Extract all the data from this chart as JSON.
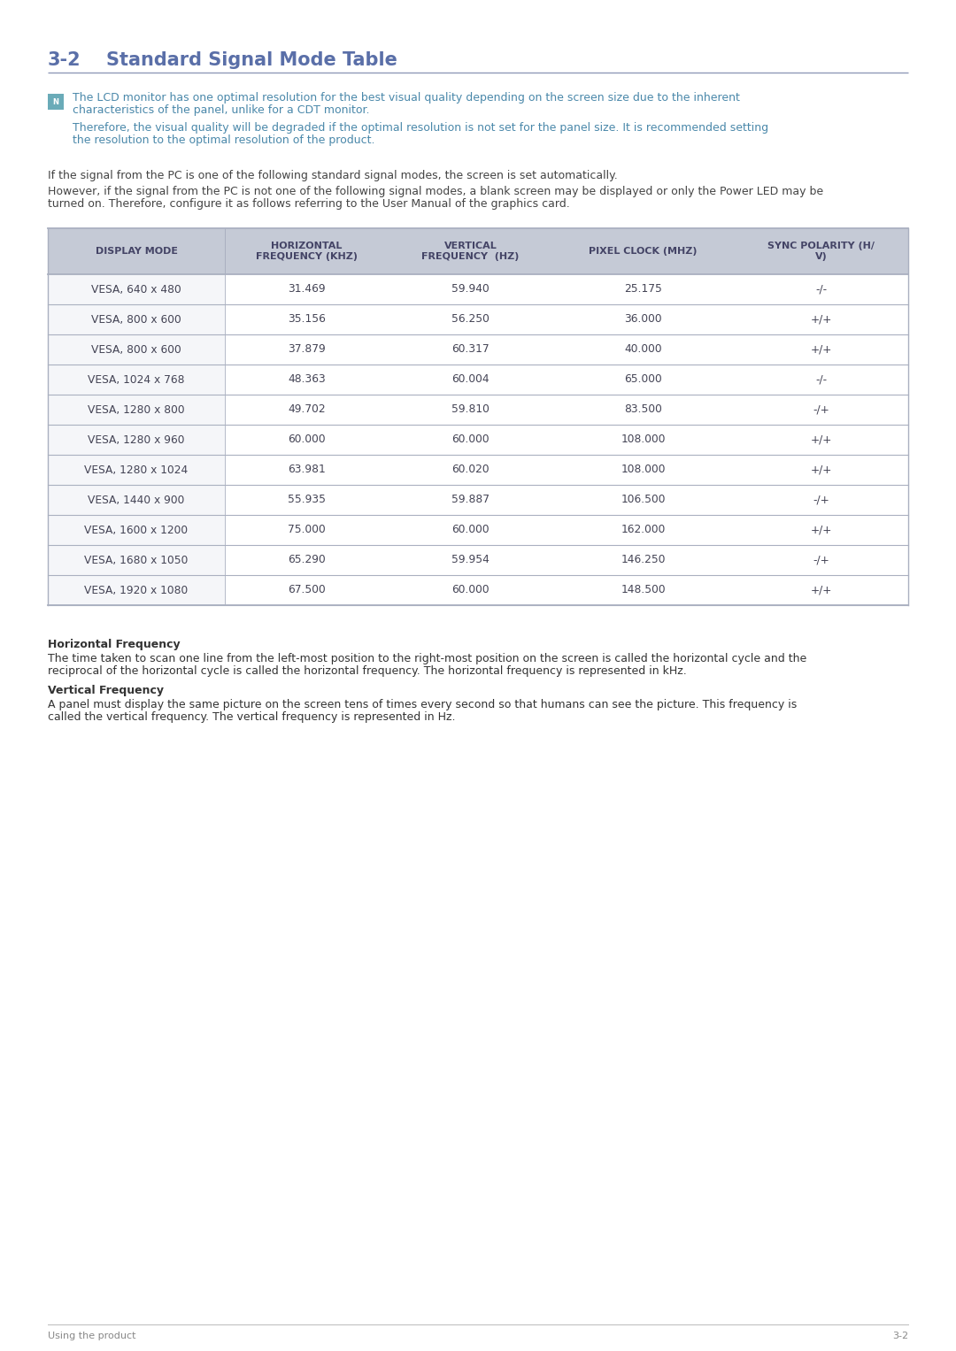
{
  "title_number": "3-2",
  "title_text": "Standard Signal Mode Table",
  "title_color": "#5a6fa8",
  "hr_color": "#9099b8",
  "note_text_color": "#4a88aa",
  "note_line1": "The LCD monitor has one optimal resolution for the best visual quality depending on the screen size due to the inherent",
  "note_line2": "characteristics of the panel, unlike for a CDT monitor.",
  "note_line3": "Therefore, the visual quality will be degraded if the optimal resolution is not set for the panel size. It is recommended setting",
  "note_line4": "the resolution to the optimal resolution of the product.",
  "para1": "If the signal from the PC is one of the following standard signal modes, the screen is set automatically.",
  "para2a": "However, if the signal from the PC is not one of the following signal modes, a blank screen may be displayed or only the Power LED may be",
  "para2b": "turned on. Therefore, configure it as follows referring to the User Manual of the graphics card.",
  "table_header_bg": "#c5cad6",
  "table_header_text_color": "#444466",
  "table_text_color": "#444455",
  "table_border_color": "#aab0c0",
  "col_headers": [
    "DISPLAY MODE",
    "HORIZONTAL\nFREQUENCY (KHZ)",
    "VERTICAL\nFREQUENCY  (HZ)",
    "PIXEL CLOCK (MHZ)",
    "SYNC POLARITY (H/\nV)"
  ],
  "rows": [
    [
      "VESA, 640 x 480",
      "31.469",
      "59.940",
      "25.175",
      "-/-"
    ],
    [
      "VESA, 800 x 600",
      "35.156",
      "56.250",
      "36.000",
      "+/+"
    ],
    [
      "VESA, 800 x 600",
      "37.879",
      "60.317",
      "40.000",
      "+/+"
    ],
    [
      "VESA, 1024 x 768",
      "48.363",
      "60.004",
      "65.000",
      "-/-"
    ],
    [
      "VESA, 1280 x 800",
      "49.702",
      "59.810",
      "83.500",
      "-/+"
    ],
    [
      "VESA, 1280 x 960",
      "60.000",
      "60.000",
      "108.000",
      "+/+"
    ],
    [
      "VESA, 1280 x 1024",
      "63.981",
      "60.020",
      "108.000",
      "+/+"
    ],
    [
      "VESA, 1440 x 900",
      "55.935",
      "59.887",
      "106.500",
      "-/+"
    ],
    [
      "VESA, 1600 x 1200",
      "75.000",
      "60.000",
      "162.000",
      "+/+"
    ],
    [
      "VESA, 1680 x 1050",
      "65.290",
      "59.954",
      "146.250",
      "-/+"
    ],
    [
      "VESA, 1920 x 1080",
      "67.500",
      "60.000",
      "148.500",
      "+/+"
    ]
  ],
  "section_hfreq_title": "Horizontal Frequency",
  "section_hfreq_line1": "The time taken to scan one line from the left-most position to the right-most position on the screen is called the horizontal cycle and the",
  "section_hfreq_line2": "reciprocal of the horizontal cycle is called the horizontal frequency. The horizontal frequency is represented in kHz.",
  "section_vfreq_title": "Vertical Frequency",
  "section_vfreq_line1": "A panel must display the same picture on the screen tens of times every second so that humans can see the picture. This frequency is",
  "section_vfreq_line2": "called the vertical frequency. The vertical frequency is represented in Hz.",
  "footer_left": "Using the product",
  "footer_right": "3-2",
  "body_text_color": "#444444",
  "icon_bg": "#6aabb8"
}
